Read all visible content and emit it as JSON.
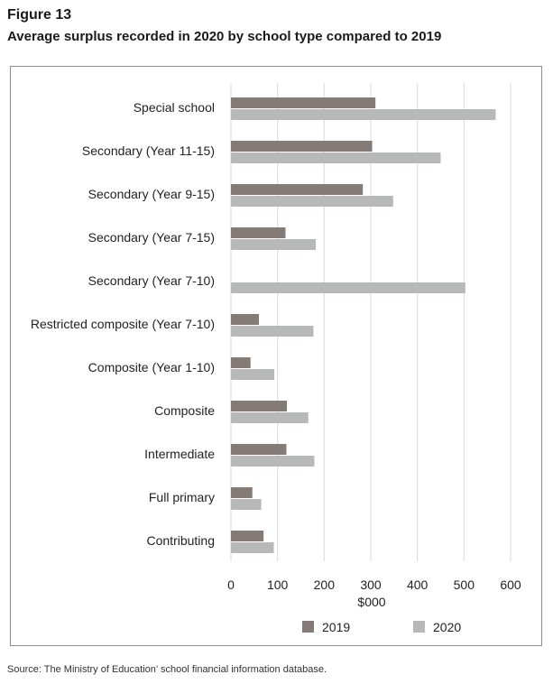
{
  "figure_label": "Figure 13",
  "source": "Source: The Ministry of Education’ school financial information database.",
  "colors": {
    "series_2019": "#857b76",
    "series_2020": "#b7b9b8",
    "grid": "#d9d9d9"
  },
  "chart_data": {
    "type": "bar",
    "orientation": "horizontal",
    "title": "Average surplus recorded in 2020 by school type compared to 2019",
    "categories": [
      "Special school",
      "Secondary  (Year 11-15)",
      "Secondary  (Year 9-15)",
      "Secondary  (Year 7-15)",
      "Secondary  (Year 7-10)",
      "Restricted composite (Year 7-10)",
      "Composite (Year 1-10)",
      "Composite",
      "Intermediate",
      "Full primary",
      "Contributing"
    ],
    "series": [
      {
        "name": "2019",
        "values": [
          310,
          303,
          283,
          117,
          0,
          60,
          42,
          120,
          119,
          46,
          70
        ]
      },
      {
        "name": "2020",
        "values": [
          568,
          450,
          348,
          182,
          503,
          177,
          93,
          166,
          179,
          65,
          92
        ]
      }
    ],
    "xlabel": "$000",
    "ylabel": "",
    "xlim": [
      0,
      600
    ],
    "xticks": [
      0,
      100,
      200,
      300,
      400,
      500,
      600
    ],
    "grid": true,
    "legend_position": "bottom"
  }
}
